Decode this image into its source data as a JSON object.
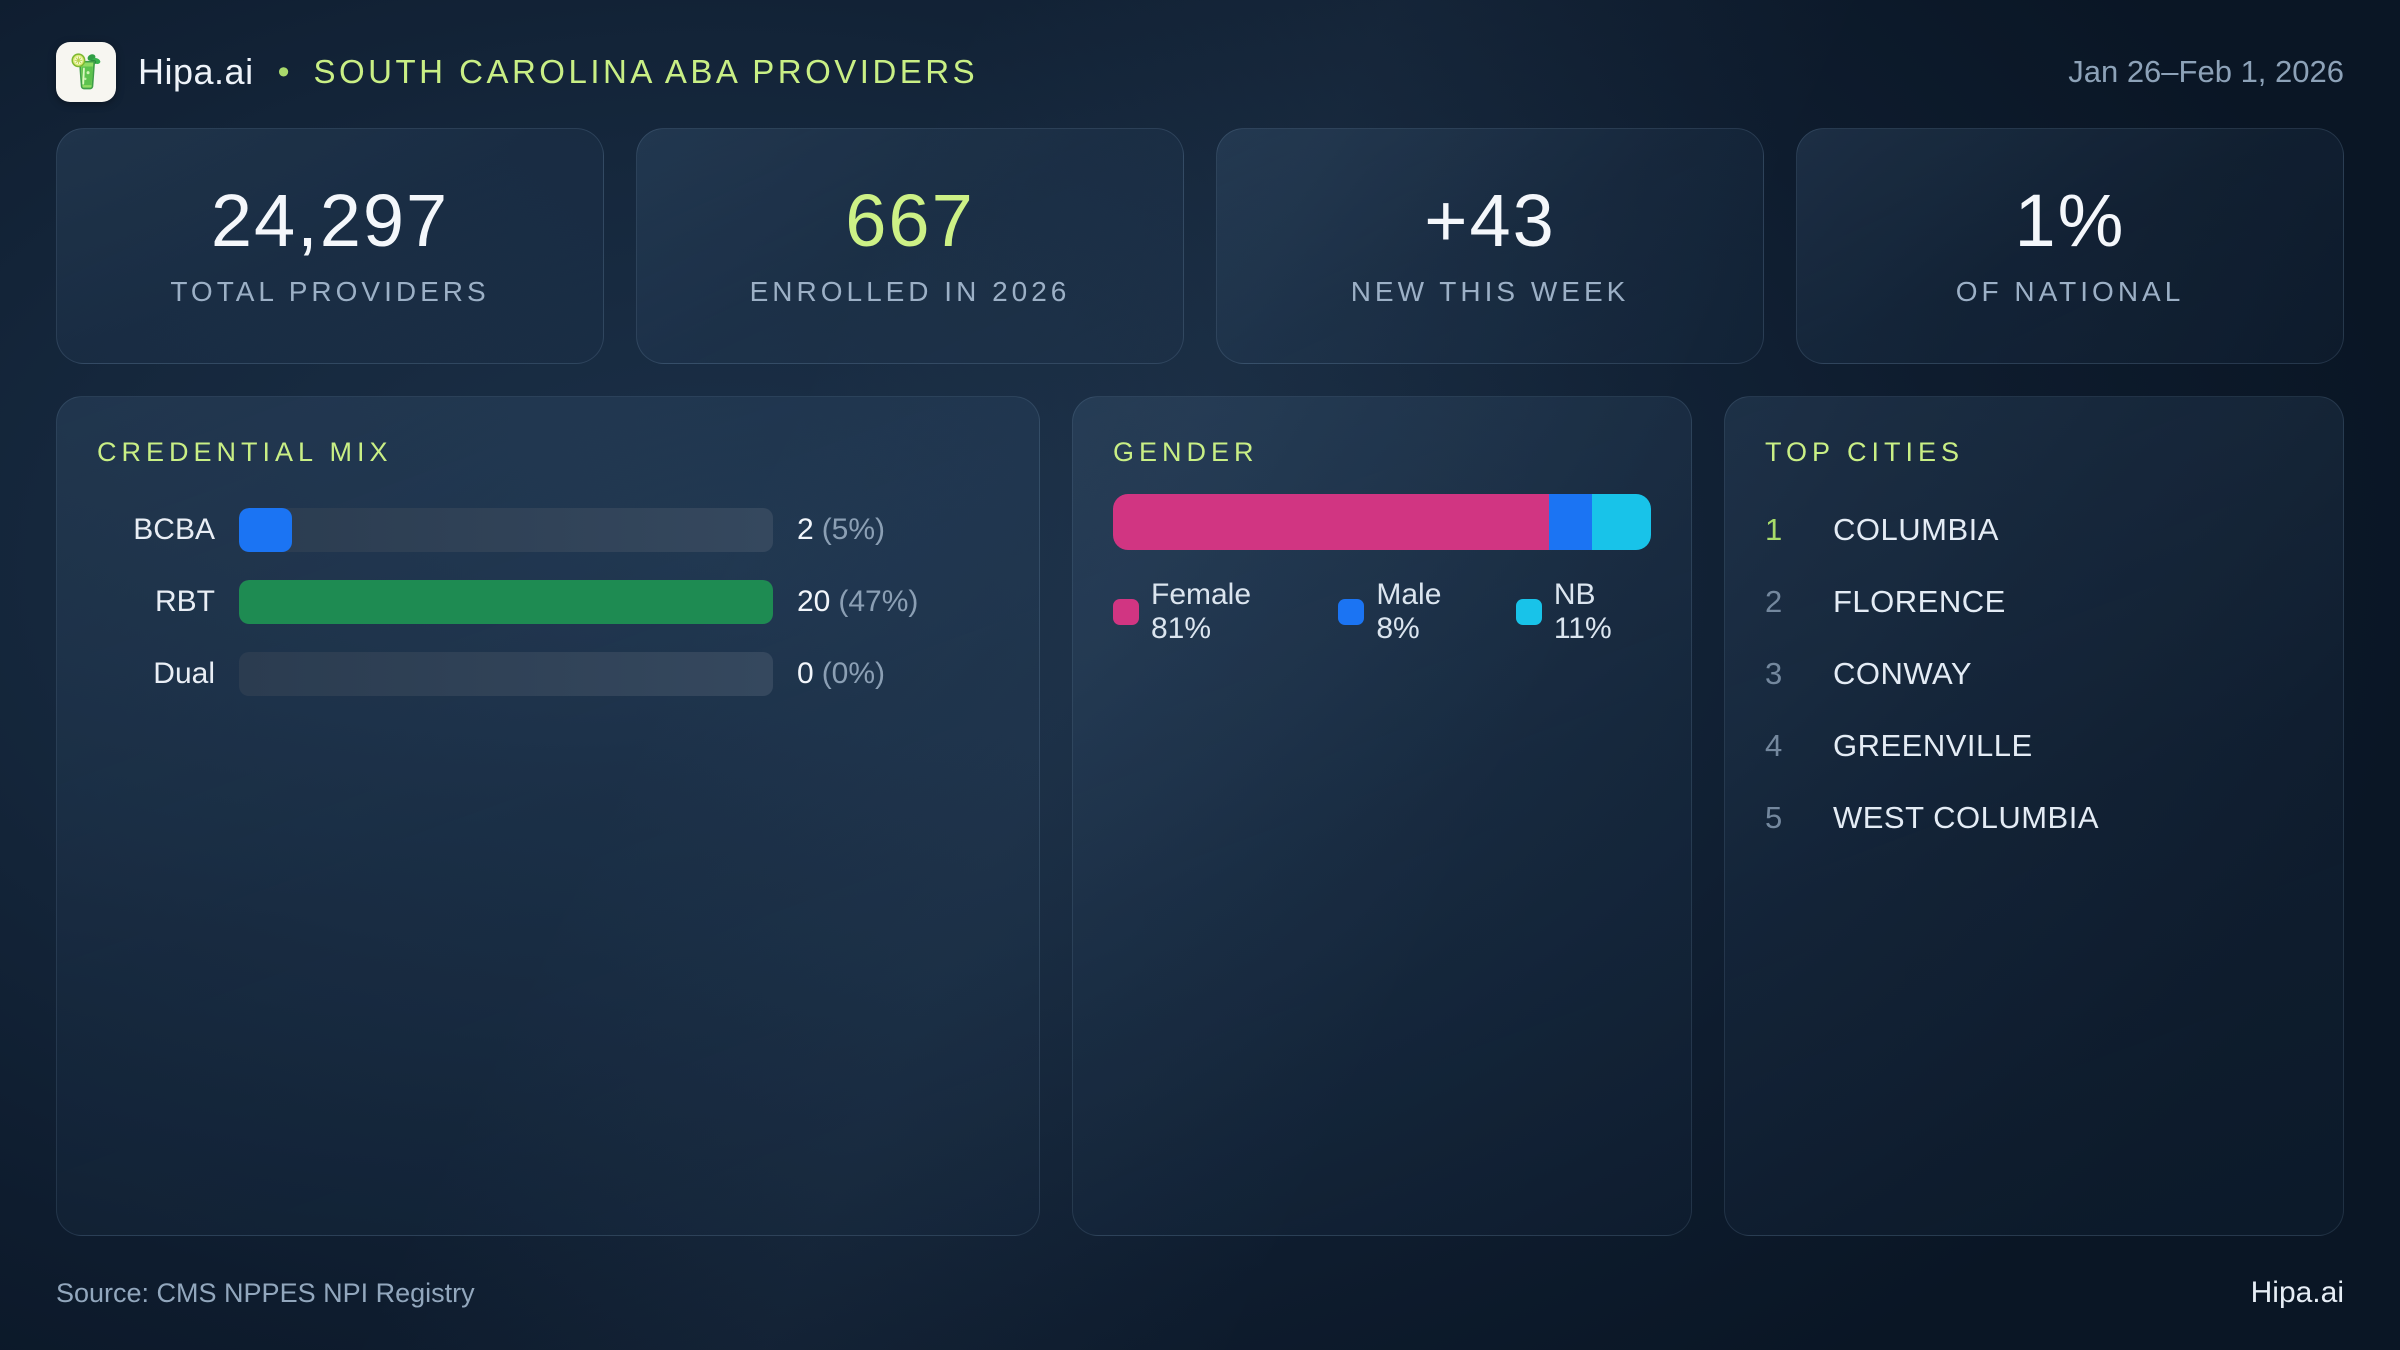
{
  "header": {
    "logo_icon": "mojito-drink-icon",
    "brand": "Hipa.ai",
    "separator": "•",
    "title": "SOUTH CAROLINA ABA PROVIDERS",
    "date_range": "Jan 26–Feb 1, 2026"
  },
  "stats": [
    {
      "value": "24,297",
      "label": "TOTAL PROVIDERS",
      "accent": false
    },
    {
      "value": "667",
      "label": "ENROLLED IN 2026",
      "accent": true
    },
    {
      "value": "+43",
      "label": "NEW THIS WEEK",
      "accent": false
    },
    {
      "value": "1%",
      "label": "OF NATIONAL",
      "accent": false
    }
  ],
  "credential_mix": {
    "title": "CREDENTIAL MIX",
    "rows": [
      {
        "label": "BCBA",
        "count": "2",
        "pct": "(5%)",
        "bar": {
          "pct": 10,
          "color": "#1b74f3"
        }
      },
      {
        "label": "RBT",
        "count": "20",
        "pct": "(47%)",
        "bar": {
          "pct": 100,
          "color": "#1e8b52"
        }
      },
      {
        "label": "Dual",
        "count": "0",
        "pct": "(0%)",
        "bar": {
          "pct": 0,
          "color": "transparent"
        }
      }
    ]
  },
  "gender": {
    "title": "GENDER",
    "segments": [
      {
        "name": "Female",
        "pct": 81,
        "color": "#d13582"
      },
      {
        "name": "Male",
        "pct": 8,
        "color": "#1b74f3"
      },
      {
        "name": "NB",
        "pct": 11,
        "color": "#18c3e9"
      }
    ],
    "legend": [
      "Female 81%",
      "Male 8%",
      "NB 11%"
    ]
  },
  "top_cities": {
    "title": "TOP CITIES",
    "items": [
      {
        "rank": "1",
        "city": "COLUMBIA"
      },
      {
        "rank": "2",
        "city": "FLORENCE"
      },
      {
        "rank": "3",
        "city": "CONWAY"
      },
      {
        "rank": "4",
        "city": "GREENVILLE"
      },
      {
        "rank": "5",
        "city": "WEST COLUMBIA"
      }
    ]
  },
  "footer": {
    "source": "Source: CMS NPPES NPI Registry",
    "brand": "Hipa.ai"
  },
  "colors": {
    "accent_green": "#cdf186",
    "female_pink": "#d13582",
    "male_blue": "#1b74f3",
    "nb_cyan": "#18c3e9",
    "rbt_green": "#1e8b52",
    "bcba_blue": "#1b74f3"
  },
  "chart_data": [
    {
      "type": "bar",
      "orientation": "horizontal",
      "title": "CREDENTIAL MIX",
      "categories": [
        "BCBA",
        "RBT",
        "Dual"
      ],
      "values": [
        2,
        20,
        0
      ],
      "value_labels": [
        "2 (5%)",
        "20 (47%)",
        "0 (0%)"
      ],
      "note": "bar lengths scaled relative to max value (RBT=20 shown full width)"
    },
    {
      "type": "bar",
      "subtype": "stacked-single-row",
      "title": "GENDER",
      "series": [
        {
          "name": "Female",
          "values": [
            81
          ]
        },
        {
          "name": "Male",
          "values": [
            8
          ]
        },
        {
          "name": "NB",
          "values": [
            11
          ]
        }
      ],
      "unit": "percent",
      "legend_position": "bottom"
    }
  ]
}
